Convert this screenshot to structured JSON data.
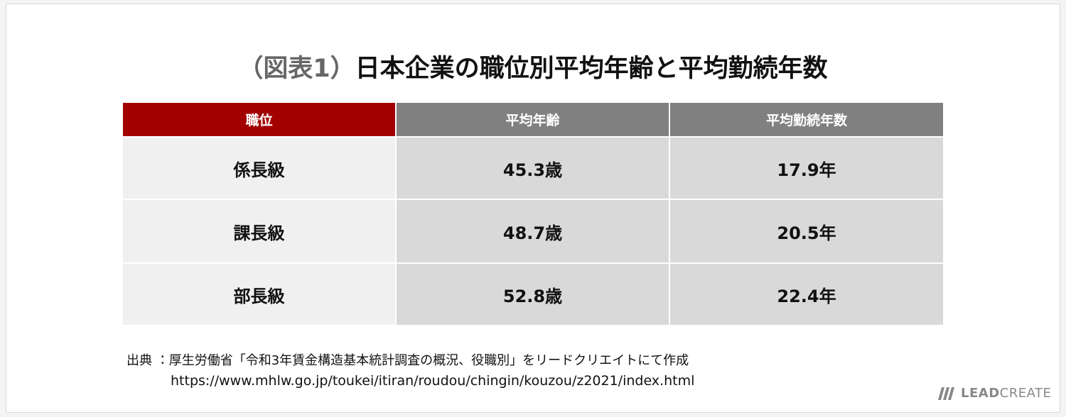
{
  "title": {
    "label": "（図表1）",
    "text": "日本企業の職位別平均年齢と平均勤続年数"
  },
  "table": {
    "header": [
      "職位",
      "平均年齢",
      "平均勤続年数"
    ],
    "rows": [
      [
        "係長級",
        "45.3歳",
        "17.9年"
      ],
      [
        "課長級",
        "48.7歳",
        "20.5年"
      ],
      [
        "部長級",
        "52.8歳",
        "22.4年"
      ]
    ]
  },
  "source": {
    "label": "出典 ：",
    "text": "厚生労働省「令和3年賃金構造基本統計調査の概況、役職別」をリードクリエイトにて作成",
    "url": "https://www.mhlw.go.jp/toukei/itiran/roudou/chingin/kouzou/z2021/index.html"
  },
  "logo": {
    "bold": "LEAD",
    "light": "CREATE"
  }
}
